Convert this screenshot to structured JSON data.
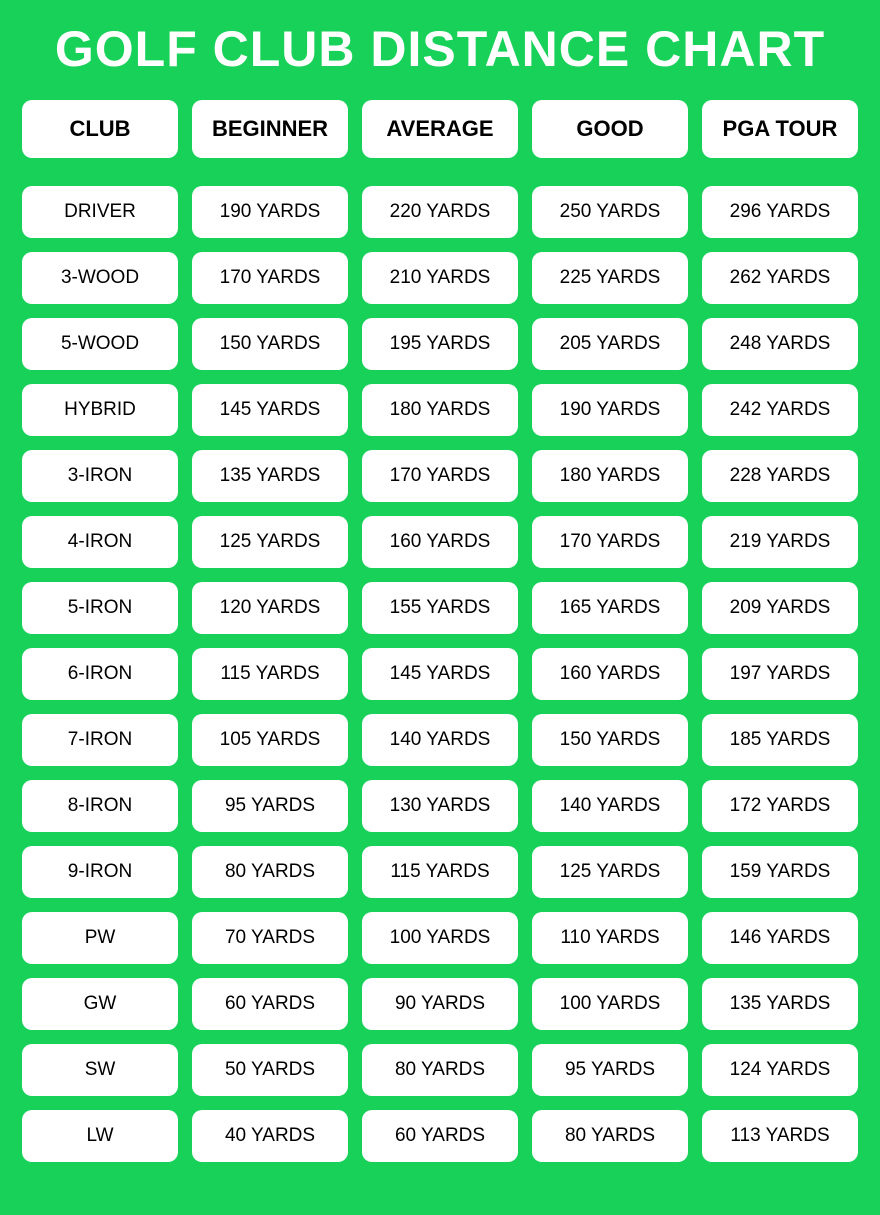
{
  "title": "GOLF CLUB DISTANCE CHART",
  "background_color": "#17d158",
  "cell_background": "#ffffff",
  "title_color": "#ffffff",
  "text_color": "#000000",
  "cell_border_radius": 10,
  "title_fontsize": 50,
  "header_fontsize": 22,
  "cell_fontsize": 19,
  "columns": [
    "CLUB",
    "BEGINNER",
    "AVERAGE",
    "GOOD",
    "PGA TOUR"
  ],
  "rows": [
    [
      "DRIVER",
      "190 YARDS",
      "220 YARDS",
      "250 YARDS",
      "296 YARDS"
    ],
    [
      "3-WOOD",
      "170 YARDS",
      "210 YARDS",
      "225 YARDS",
      "262 YARDS"
    ],
    [
      "5-WOOD",
      "150 YARDS",
      "195 YARDS",
      "205 YARDS",
      "248 YARDS"
    ],
    [
      "HYBRID",
      "145 YARDS",
      "180 YARDS",
      "190 YARDS",
      "242 YARDS"
    ],
    [
      "3-IRON",
      "135 YARDS",
      "170 YARDS",
      "180 YARDS",
      "228 YARDS"
    ],
    [
      "4-IRON",
      "125 YARDS",
      "160 YARDS",
      "170 YARDS",
      "219 YARDS"
    ],
    [
      "5-IRON",
      "120 YARDS",
      "155 YARDS",
      "165 YARDS",
      "209 YARDS"
    ],
    [
      "6-IRON",
      "115 YARDS",
      "145 YARDS",
      "160 YARDS",
      "197 YARDS"
    ],
    [
      "7-IRON",
      "105 YARDS",
      "140 YARDS",
      "150 YARDS",
      "185 YARDS"
    ],
    [
      "8-IRON",
      "95 YARDS",
      "130 YARDS",
      "140 YARDS",
      "172 YARDS"
    ],
    [
      "9-IRON",
      "80 YARDS",
      "115 YARDS",
      "125 YARDS",
      "159 YARDS"
    ],
    [
      "PW",
      "70 YARDS",
      "100 YARDS",
      "110 YARDS",
      "146 YARDS"
    ],
    [
      "GW",
      "60 YARDS",
      "90 YARDS",
      "100 YARDS",
      "135 YARDS"
    ],
    [
      "SW",
      "50 YARDS",
      "80 YARDS",
      "95 YARDS",
      "124 YARDS"
    ],
    [
      "LW",
      "40 YARDS",
      "60 YARDS",
      "80 YARDS",
      "113 YARDS"
    ]
  ]
}
